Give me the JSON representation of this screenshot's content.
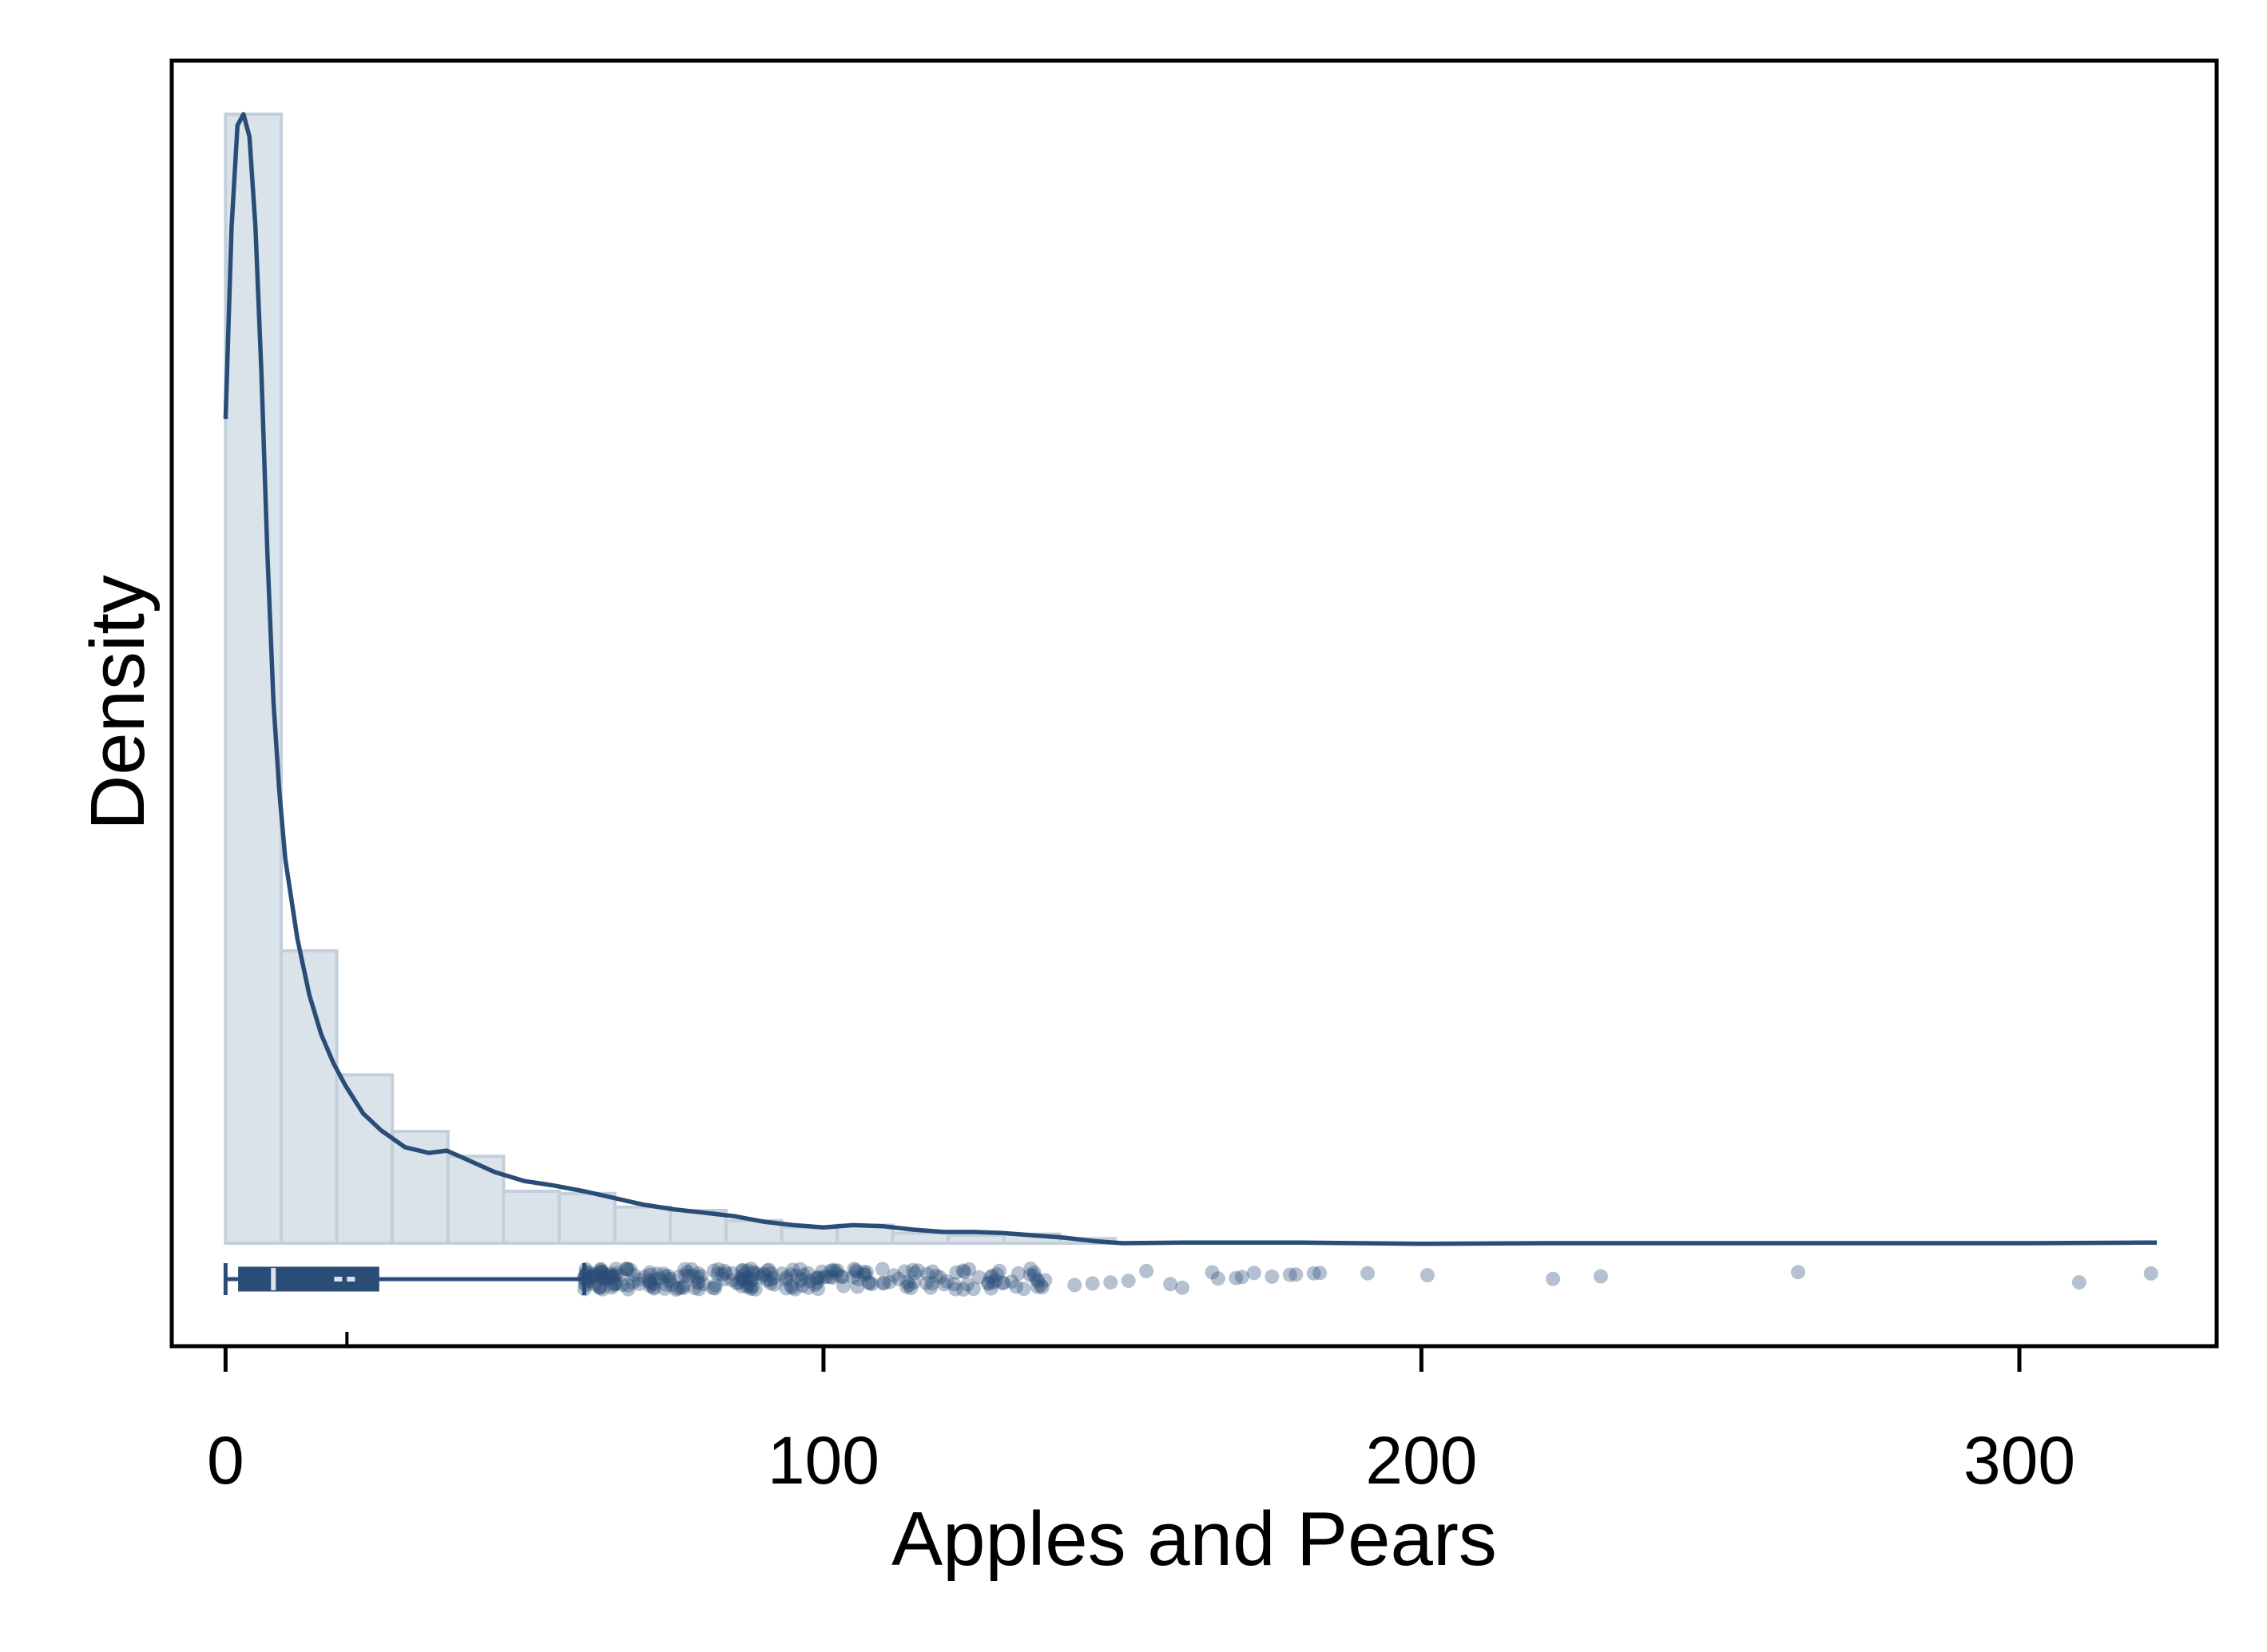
{
  "chart_data": {
    "type": "histogram",
    "xlabel": "Apples and Pears",
    "ylabel": "Density",
    "xlim": [
      -9,
      333
    ],
    "x_ticks": [
      0,
      100,
      200,
      300
    ],
    "x_tick_labels": [
      "0",
      "100",
      "200",
      "300"
    ],
    "y_ticks_shown": false,
    "grid": false,
    "legend": "none",
    "histogram": {
      "bin_width": 9.3,
      "bins": [
        {
          "x0": 0.0,
          "x1": 9.3,
          "density": 1.0
        },
        {
          "x0": 9.3,
          "x1": 18.6,
          "density": 0.259
        },
        {
          "x0": 18.6,
          "x1": 27.9,
          "density": 0.149
        },
        {
          "x0": 27.9,
          "x1": 37.2,
          "density": 0.099
        },
        {
          "x0": 37.2,
          "x1": 46.5,
          "density": 0.077
        },
        {
          "x0": 46.5,
          "x1": 55.8,
          "density": 0.046
        },
        {
          "x0": 55.8,
          "x1": 65.1,
          "density": 0.044
        },
        {
          "x0": 65.1,
          "x1": 74.4,
          "density": 0.032
        },
        {
          "x0": 74.4,
          "x1": 83.7,
          "density": 0.029
        },
        {
          "x0": 83.7,
          "x1": 93.0,
          "density": 0.02
        },
        {
          "x0": 93.0,
          "x1": 102.3,
          "density": 0.014
        },
        {
          "x0": 102.3,
          "x1": 111.6,
          "density": 0.016
        },
        {
          "x0": 111.6,
          "x1": 120.9,
          "density": 0.009
        },
        {
          "x0": 120.9,
          "x1": 130.2,
          "density": 0.007
        },
        {
          "x0": 130.2,
          "x1": 139.5,
          "density": 0.008
        },
        {
          "x0": 139.5,
          "x1": 148.8,
          "density": 0.004
        }
      ]
    },
    "kde": {
      "x": [
        0,
        1,
        2,
        3,
        4,
        5,
        6,
        7,
        8,
        9,
        10,
        12,
        14,
        16,
        18,
        20,
        23,
        26,
        30,
        34,
        37,
        40,
        45,
        50,
        55,
        60,
        65,
        70,
        75,
        80,
        85,
        90,
        95,
        100,
        105,
        110,
        115,
        120,
        125,
        130,
        135,
        140,
        145,
        150,
        160,
        180,
        200,
        220,
        240,
        260,
        280,
        300,
        320,
        323
      ],
      "y": [
        0.73,
        0.9,
        0.99,
        1.0,
        0.98,
        0.9,
        0.77,
        0.61,
        0.48,
        0.4,
        0.34,
        0.27,
        0.22,
        0.185,
        0.16,
        0.14,
        0.115,
        0.1,
        0.085,
        0.08,
        0.082,
        0.075,
        0.063,
        0.055,
        0.051,
        0.046,
        0.04,
        0.034,
        0.03,
        0.027,
        0.024,
        0.019,
        0.016,
        0.014,
        0.016,
        0.015,
        0.012,
        0.01,
        0.01,
        0.009,
        0.007,
        0.005,
        0.002,
        0.0,
        0.0005,
        0.0005,
        -0.0005,
        0.0,
        0.0,
        0.0,
        0.0,
        0.0,
        0.0005,
        0.0005
      ]
    },
    "boxplot": {
      "whisker_low": 0,
      "q1": 2.3,
      "median": 8,
      "q3": 25.5,
      "whisker_high": 60,
      "mean": 20.3,
      "outlier_band": [
        60,
        140
      ],
      "sparse_outliers": [
        142,
        145,
        148,
        151,
        154,
        158,
        160,
        165,
        166,
        169,
        170,
        172,
        175,
        178,
        179,
        182,
        183,
        191,
        201,
        222,
        230,
        263,
        310,
        322
      ]
    },
    "colors": {
      "main": "#2a4d77",
      "hist_fill": "#dbe3ea",
      "hist_edge": "#c3cfda",
      "outlier": "#2a4d77"
    }
  }
}
